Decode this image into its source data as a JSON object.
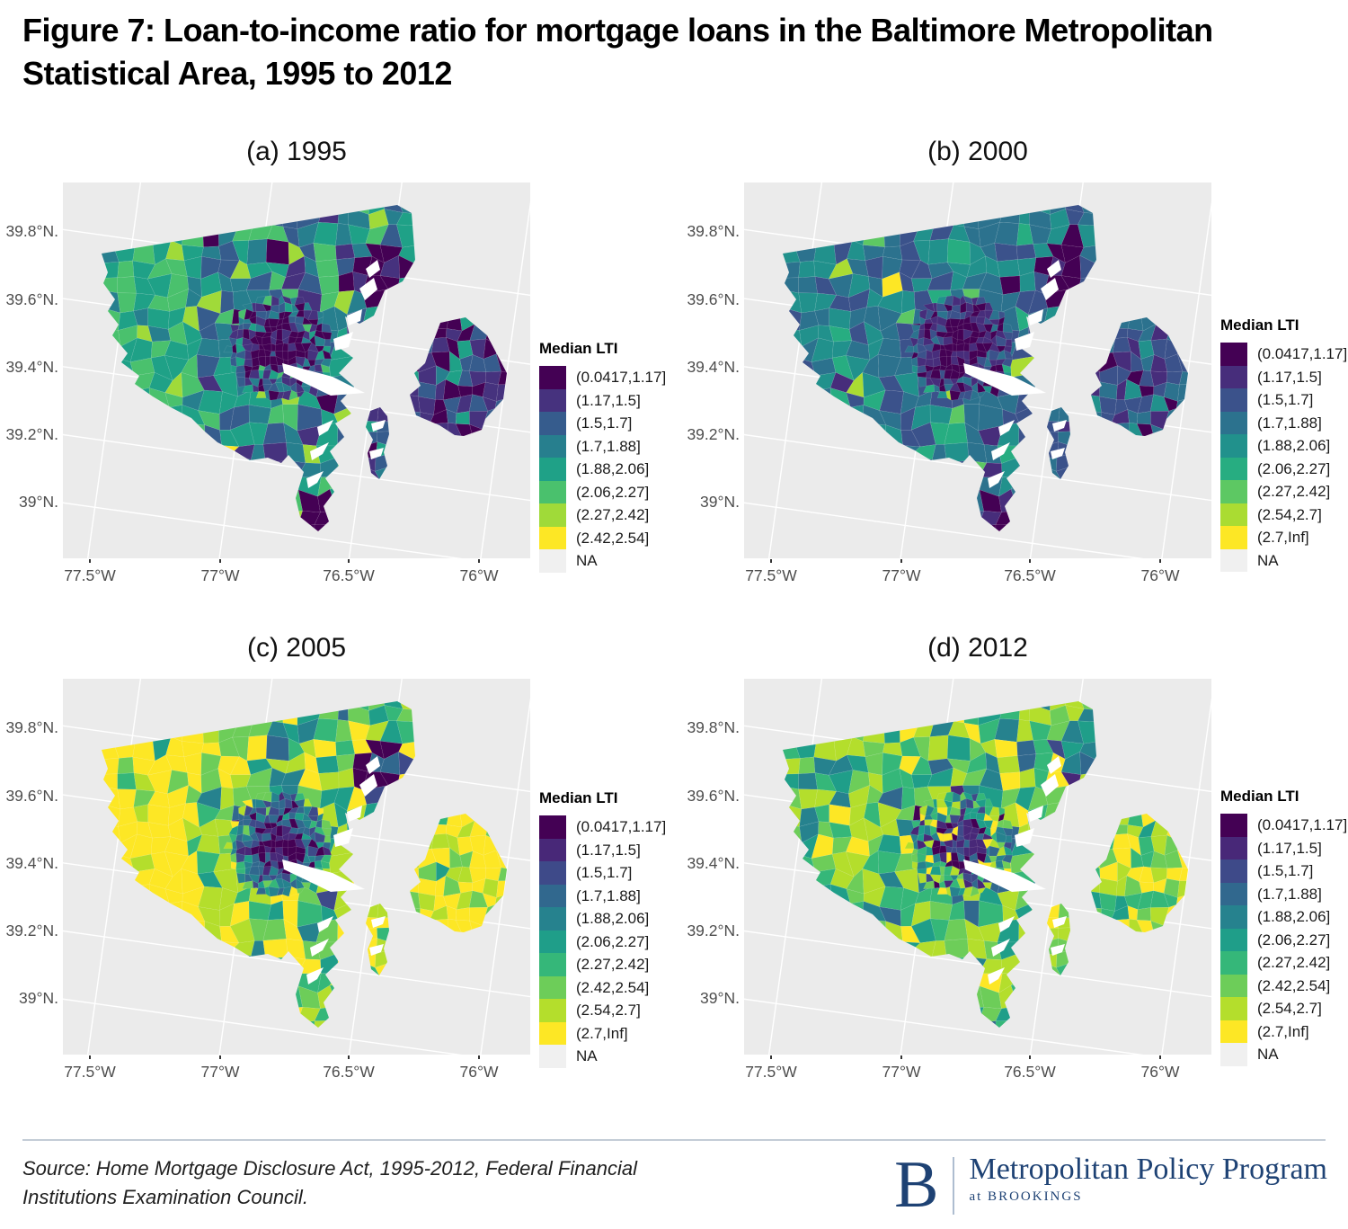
{
  "figure_title": "Figure 7: Loan-to-income ratio for mortgage loans in the Baltimore Metropolitan Statistical Area, 1995 to 2012",
  "source": {
    "line1": "Source: Home Mortgage Disclosure Act, 1995-2012, Federal Financial",
    "line2": "Institutions Examination Council."
  },
  "logo": {
    "b": "B",
    "program": "Metropolitan Policy Program",
    "at": "at BROOKINGS",
    "navy": "#1E4274"
  },
  "axes": {
    "y_ticks": [
      "39.8°N.",
      "39.6°N.",
      "39.4°N.",
      "39.2°N.",
      "39°N."
    ],
    "x_ticks": [
      "77.5°W",
      "77°W",
      "76.5°W",
      "76°W"
    ]
  },
  "chart_data": {
    "type": "heatmap",
    "subtype": "choropleth-small-multiples",
    "variable": "Median LTI",
    "region": "Baltimore Metropolitan Statistical Area census tracts",
    "panel_bg": "#EBEBEB",
    "grid_color": "#FFFFFF",
    "water_color": "#FFFFFF",
    "panels": [
      {
        "id": "a",
        "year": 1995,
        "label": "(a) 1995",
        "legend_title": "Median LTI",
        "bins": [
          "(0.0417,1.17]",
          "(1.17,1.5]",
          "(1.5,1.7]",
          "(1.7,1.88]",
          "(1.88,2.06]",
          "(2.06,2.27]",
          "(2.27,2.42]",
          "(2.42,2.54]"
        ],
        "colors": [
          "#440154",
          "#46327E",
          "#365C8D",
          "#277F8E",
          "#1FA187",
          "#4AC16D",
          "#A0DA39",
          "#FDE725"
        ],
        "na_label": "NA",
        "na_color": "#F0F0F0",
        "zone_weights": {
          "base": [
            0.02,
            0.07,
            0.14,
            0.26,
            0.28,
            0.18,
            0.04,
            0.01
          ],
          "west": [
            0.0,
            0.02,
            0.05,
            0.12,
            0.3,
            0.38,
            0.11,
            0.02
          ],
          "center": [
            0.72,
            0.2,
            0.08,
            0.0,
            0.0,
            0.0,
            0.0,
            0.0
          ],
          "ring": [
            0.22,
            0.28,
            0.22,
            0.14,
            0.1,
            0.04,
            0.0,
            0.0
          ],
          "ne": [
            0.78,
            0.16,
            0.06,
            0.0,
            0.0,
            0.0,
            0.0,
            0.0
          ],
          "tip": [
            0.88,
            0.12,
            0.0,
            0.0,
            0.0,
            0.0,
            0.0,
            0.0
          ],
          "blob": [
            0.28,
            0.3,
            0.2,
            0.12,
            0.1,
            0.0,
            0.0,
            0.0
          ],
          "sliver": [
            0.1,
            0.38,
            0.28,
            0.14,
            0.1,
            0.0,
            0.0,
            0.0
          ]
        }
      },
      {
        "id": "b",
        "year": 2000,
        "label": "(b) 2000",
        "legend_title": "Median LTI",
        "bins": [
          "(0.0417,1.17]",
          "(1.17,1.5]",
          "(1.5,1.7]",
          "(1.7,1.88]",
          "(1.88,2.06]",
          "(2.06,2.27]",
          "(2.27,2.42]",
          "(2.54,2.7]",
          "(2.7,Inf]"
        ],
        "colors": [
          "#440154",
          "#472D7B",
          "#3B528B",
          "#2C728E",
          "#21918C",
          "#27AD81",
          "#5DC863",
          "#AADC32",
          "#FDE725"
        ],
        "na_label": "NA",
        "na_color": "#F0F0F0",
        "zone_weights": {
          "base": [
            0.01,
            0.08,
            0.24,
            0.32,
            0.22,
            0.08,
            0.03,
            0.01,
            0.01
          ],
          "west": [
            0.0,
            0.03,
            0.15,
            0.3,
            0.3,
            0.14,
            0.06,
            0.02,
            0.0
          ],
          "center": [
            0.78,
            0.16,
            0.06,
            0.0,
            0.0,
            0.0,
            0.0,
            0.0,
            0.0
          ],
          "ring": [
            0.3,
            0.3,
            0.24,
            0.16,
            0.0,
            0.0,
            0.0,
            0.0,
            0.0
          ],
          "ne": [
            0.84,
            0.1,
            0.06,
            0.0,
            0.0,
            0.0,
            0.0,
            0.0,
            0.0
          ],
          "tip": [
            0.88,
            0.12,
            0.0,
            0.0,
            0.0,
            0.0,
            0.0,
            0.0,
            0.0
          ],
          "blob": [
            0.12,
            0.22,
            0.34,
            0.22,
            0.1,
            0.0,
            0.0,
            0.0,
            0.0
          ],
          "sliver": [
            0.0,
            0.25,
            0.35,
            0.25,
            0.15,
            0.0,
            0.0,
            0.0,
            0.0
          ]
        }
      },
      {
        "id": "c",
        "year": 2005,
        "label": "(c) 2005",
        "legend_title": "Median LTI",
        "bins": [
          "(0.0417,1.17]",
          "(1.17,1.5]",
          "(1.5,1.7]",
          "(1.7,1.88]",
          "(1.88,2.06]",
          "(2.06,2.27]",
          "(2.27,2.42]",
          "(2.42,2.54]",
          "(2.54,2.7]",
          "(2.7,Inf]"
        ],
        "colors": [
          "#440154",
          "#482878",
          "#3E4A89",
          "#31688E",
          "#26828E",
          "#1F9E89",
          "#35B779",
          "#6DCD59",
          "#B4DE2C",
          "#FDE725"
        ],
        "na_label": "NA",
        "na_color": "#F0F0F0",
        "zone_weights": {
          "base": [
            0.0,
            0.0,
            0.01,
            0.02,
            0.05,
            0.1,
            0.16,
            0.2,
            0.22,
            0.24
          ],
          "west": [
            0.0,
            0.0,
            0.0,
            0.0,
            0.01,
            0.02,
            0.05,
            0.08,
            0.18,
            0.66
          ],
          "center": [
            0.64,
            0.2,
            0.1,
            0.06,
            0.0,
            0.0,
            0.0,
            0.0,
            0.0,
            0.0
          ],
          "ring": [
            0.06,
            0.1,
            0.16,
            0.22,
            0.2,
            0.12,
            0.08,
            0.06,
            0.0,
            0.0
          ],
          "ne": [
            0.66,
            0.1,
            0.1,
            0.14,
            0.0,
            0.0,
            0.0,
            0.0,
            0.0,
            0.0
          ],
          "tip": [
            0.0,
            0.0,
            0.0,
            0.0,
            0.0,
            0.06,
            0.14,
            0.2,
            0.25,
            0.35
          ],
          "blob": [
            0.0,
            0.0,
            0.0,
            0.0,
            0.0,
            0.04,
            0.14,
            0.18,
            0.24,
            0.4
          ],
          "sliver": [
            0.0,
            0.0,
            0.0,
            0.0,
            0.0,
            0.0,
            0.12,
            0.18,
            0.28,
            0.42
          ]
        }
      },
      {
        "id": "d",
        "year": 2012,
        "label": "(d) 2012",
        "legend_title": "Median LTI",
        "bins": [
          "(0.0417,1.17]",
          "(1.17,1.5]",
          "(1.5,1.7]",
          "(1.7,1.88]",
          "(1.88,2.06]",
          "(2.06,2.27]",
          "(2.27,2.42]",
          "(2.42,2.54]",
          "(2.54,2.7]",
          "(2.7,Inf]"
        ],
        "colors": [
          "#440154",
          "#482878",
          "#3E4A89",
          "#31688E",
          "#26828E",
          "#1F9E89",
          "#35B779",
          "#6DCD59",
          "#B4DE2C",
          "#FDE725"
        ],
        "na_label": "NA",
        "na_color": "#F0F0F0",
        "zone_weights": {
          "base": [
            0.0,
            0.0,
            0.01,
            0.03,
            0.1,
            0.13,
            0.2,
            0.22,
            0.25,
            0.06
          ],
          "west": [
            0.0,
            0.0,
            0.0,
            0.01,
            0.06,
            0.12,
            0.2,
            0.25,
            0.3,
            0.06
          ],
          "center": [
            0.42,
            0.34,
            0.1,
            0.04,
            0.0,
            0.0,
            0.0,
            0.0,
            0.0,
            0.1
          ],
          "ring": [
            0.04,
            0.08,
            0.1,
            0.1,
            0.16,
            0.12,
            0.12,
            0.1,
            0.1,
            0.08
          ],
          "ne": [
            0.0,
            0.02,
            0.08,
            0.22,
            0.34,
            0.12,
            0.08,
            0.04,
            0.06,
            0.04
          ],
          "tip": [
            0.0,
            0.0,
            0.0,
            0.04,
            0.14,
            0.28,
            0.34,
            0.14,
            0.06,
            0.0
          ],
          "blob": [
            0.0,
            0.0,
            0.0,
            0.0,
            0.04,
            0.1,
            0.28,
            0.14,
            0.18,
            0.26
          ],
          "sliver": [
            0.0,
            0.0,
            0.0,
            0.0,
            0.0,
            0.04,
            0.12,
            0.3,
            0.4,
            0.14
          ]
        }
      }
    ]
  }
}
